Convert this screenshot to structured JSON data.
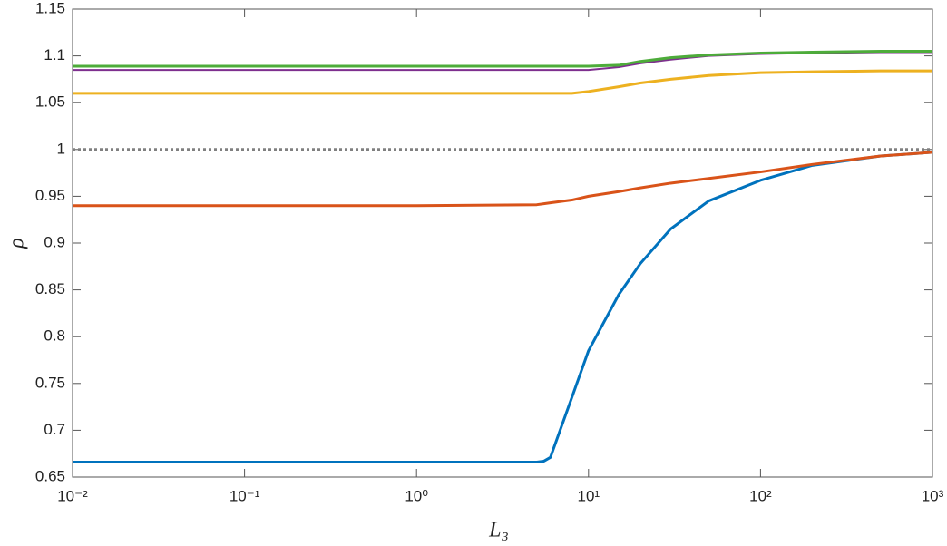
{
  "chart_data": {
    "type": "line",
    "xlabel": "L₃",
    "ylabel": "ρ",
    "xscale": "log",
    "xlim": [
      0.01,
      1000
    ],
    "ylim": [
      0.65,
      1.15
    ],
    "xticks": [
      {
        "value": 0.01,
        "label": "10⁻²"
      },
      {
        "value": 0.1,
        "label": "10⁻¹"
      },
      {
        "value": 1,
        "label": "10⁰"
      },
      {
        "value": 10,
        "label": "10¹"
      },
      {
        "value": 100,
        "label": "10²"
      },
      {
        "value": 1000,
        "label": "10³"
      }
    ],
    "yticks": [
      0.65,
      0.7,
      0.75,
      0.8,
      0.85,
      0.9,
      0.95,
      1,
      1.05,
      1.1,
      1.15
    ],
    "grid": false,
    "x": [
      0.01,
      0.1,
      1,
      5,
      5.5,
      6,
      8,
      10,
      15,
      20,
      30,
      50,
      100,
      200,
      500,
      1000
    ],
    "series": [
      {
        "color": "#0072bd",
        "linewidth": 3,
        "values": [
          0.666,
          0.666,
          0.666,
          0.666,
          0.667,
          0.671,
          0.735,
          0.785,
          0.845,
          0.878,
          0.915,
          0.945,
          0.967,
          0.983,
          0.993,
          0.997
        ]
      },
      {
        "color": "#d95319",
        "linewidth": 3,
        "values": [
          0.94,
          0.94,
          0.94,
          0.941,
          0.942,
          0.943,
          0.946,
          0.95,
          0.955,
          0.959,
          0.964,
          0.969,
          0.976,
          0.984,
          0.993,
          0.997
        ]
      },
      {
        "color": "#edb120",
        "linewidth": 3,
        "values": [
          1.06,
          1.06,
          1.06,
          1.06,
          1.06,
          1.06,
          1.06,
          1.062,
          1.067,
          1.071,
          1.075,
          1.079,
          1.082,
          1.083,
          1.084,
          1.084
        ]
      },
      {
        "color": "#7e2f8e",
        "linewidth": 2,
        "values": [
          1.085,
          1.085,
          1.085,
          1.085,
          1.085,
          1.085,
          1.085,
          1.085,
          1.088,
          1.092,
          1.096,
          1.1,
          1.102,
          1.103,
          1.104,
          1.104
        ]
      },
      {
        "color": "#4dac3a",
        "linewidth": 3,
        "values": [
          1.089,
          1.089,
          1.089,
          1.089,
          1.089,
          1.089,
          1.089,
          1.089,
          1.09,
          1.094,
          1.098,
          1.101,
          1.103,
          1.104,
          1.105,
          1.105
        ]
      },
      {
        "color": "#808080",
        "linewidth": 3,
        "dotted": true,
        "values": [
          1,
          1,
          1,
          1,
          1,
          1,
          1,
          1,
          1,
          1,
          1,
          1,
          1,
          1,
          1,
          1
        ]
      }
    ]
  }
}
